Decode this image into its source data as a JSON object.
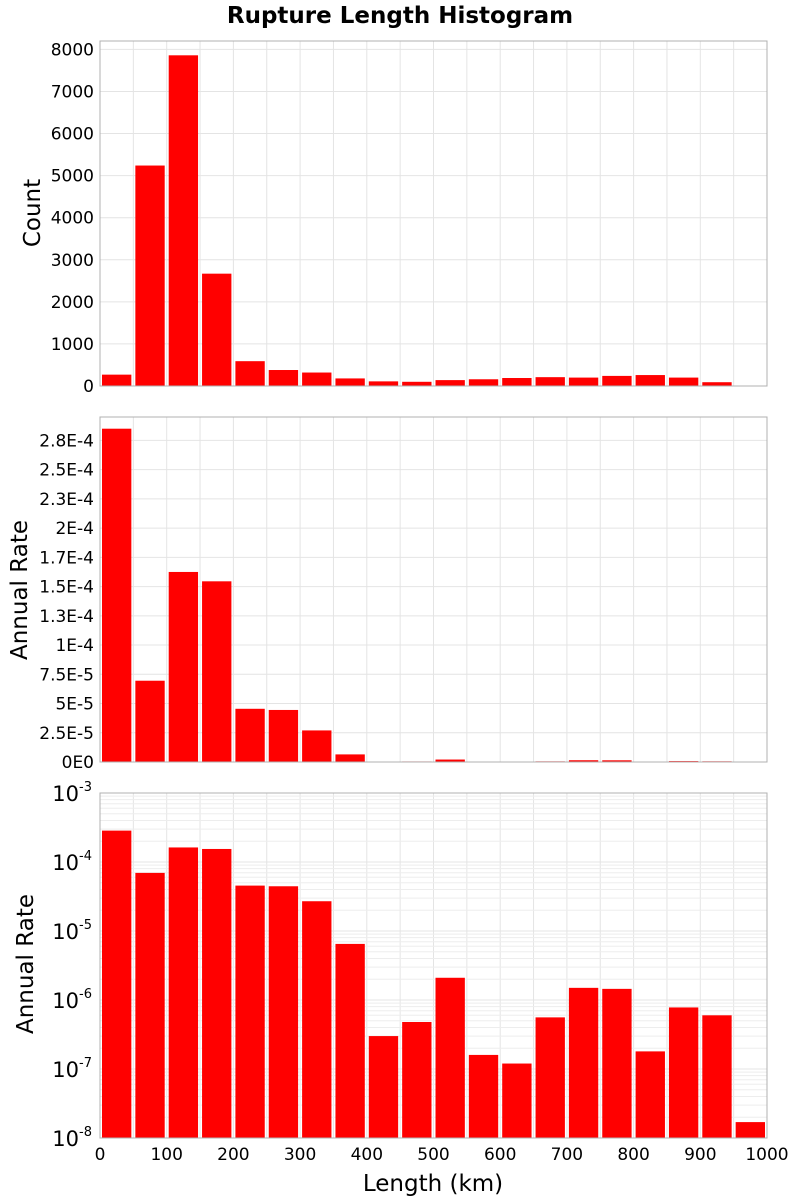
{
  "colors": {
    "bar": "#ff0000",
    "frame": "#b0b0b0",
    "grid": "#e4e4e4"
  },
  "chart_data": [
    {
      "type": "bar",
      "title": "Rupture Length Histogram",
      "xlabel": "",
      "ylabel": "Count",
      "xlim": [
        0,
        1000
      ],
      "ylim": [
        0,
        8200
      ],
      "bin_width": 50,
      "categories": [
        "25",
        "75",
        "125",
        "175",
        "225",
        "275",
        "325",
        "375",
        "425",
        "475",
        "525",
        "575",
        "625",
        "675",
        "725",
        "775",
        "825",
        "875",
        "925",
        "975"
      ],
      "values": [
        270,
        5240,
        7860,
        2670,
        590,
        380,
        320,
        180,
        110,
        100,
        140,
        160,
        190,
        210,
        200,
        240,
        260,
        200,
        90,
        0
      ],
      "yticks": [
        0,
        1000,
        2000,
        3000,
        4000,
        5000,
        6000,
        7000,
        8000
      ],
      "ytick_labels": [
        "0",
        "1000",
        "2000",
        "3000",
        "4000",
        "5000",
        "6000",
        "7000",
        "8000"
      ],
      "grid": true
    },
    {
      "type": "bar",
      "xlabel": "",
      "ylabel": "Annual Rate",
      "xlim": [
        0,
        1000
      ],
      "ylim": [
        0,
        0.000295
      ],
      "bin_width": 50,
      "categories": [
        "25",
        "75",
        "125",
        "175",
        "225",
        "275",
        "325",
        "375",
        "425",
        "475",
        "525",
        "575",
        "625",
        "675",
        "725",
        "775",
        "825",
        "875",
        "925",
        "975"
      ],
      "values": [
        0.000285,
        6.95e-05,
        0.0001625,
        0.0001545,
        4.55e-05,
        4.45e-05,
        2.7e-05,
        6.5e-06,
        3e-07,
        4.8e-07,
        2.1e-06,
        1.6e-07,
        1.2e-07,
        5.6e-07,
        1.5e-06,
        1.45e-06,
        1.8e-07,
        7.8e-07,
        6e-07,
        1.7e-08
      ],
      "yticks": [
        0,
        2.5e-05,
        5e-05,
        7.5e-05,
        0.0001,
        0.000125,
        0.00015,
        0.000175,
        0.0002,
        0.000225,
        0.00025,
        0.000275
      ],
      "ytick_labels": [
        "0E0",
        "2.5E-5",
        "5E-5",
        "7.5E-5",
        "1E-4",
        "1.3E-4",
        "1.5E-4",
        "1.7E-4",
        "2E-4",
        "2.3E-4",
        "2.5E-4",
        "2.8E-4"
      ],
      "grid": true
    },
    {
      "type": "bar",
      "xlabel": "Length (km)",
      "ylabel": "Annual Rate",
      "yscale": "log",
      "xlim": [
        0,
        1000
      ],
      "ylim": [
        1e-08,
        0.001
      ],
      "bin_width": 50,
      "categories": [
        "25",
        "75",
        "125",
        "175",
        "225",
        "275",
        "325",
        "375",
        "425",
        "475",
        "525",
        "575",
        "625",
        "675",
        "725",
        "775",
        "825",
        "875",
        "925",
        "975"
      ],
      "values": [
        0.000285,
        6.95e-05,
        0.0001625,
        0.0001545,
        4.55e-05,
        4.45e-05,
        2.7e-05,
        6.5e-06,
        3e-07,
        4.8e-07,
        2.1e-06,
        1.6e-07,
        1.2e-07,
        5.6e-07,
        1.5e-06,
        1.45e-06,
        1.8e-07,
        7.8e-07,
        6e-07,
        1.7e-08
      ],
      "ytick_bases": [
        "10",
        "10",
        "10",
        "10",
        "10",
        "10"
      ],
      "ytick_exponents": [
        "-8",
        "-7",
        "-6",
        "-5",
        "-4",
        "-3"
      ],
      "xticks": [
        0,
        100,
        200,
        300,
        400,
        500,
        600,
        700,
        800,
        900,
        1000
      ],
      "xtick_labels": [
        "0",
        "100",
        "200",
        "300",
        "400",
        "500",
        "600",
        "700",
        "800",
        "900",
        "1000"
      ],
      "grid": true
    }
  ]
}
